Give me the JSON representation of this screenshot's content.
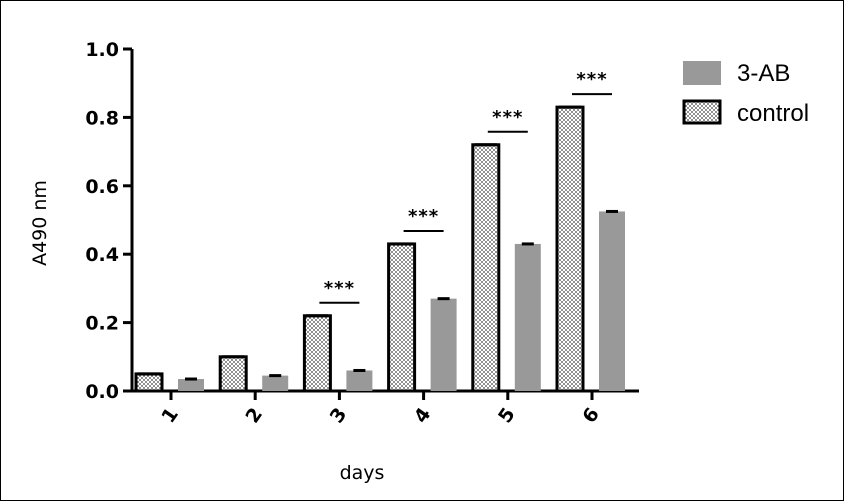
{
  "chart_data": {
    "type": "bar",
    "title": "",
    "xlabel": "days",
    "ylabel": "A490 nm",
    "ylim": [
      0,
      1.0
    ],
    "yticks": [
      "0.0",
      "0.2",
      "0.4",
      "0.6",
      "0.8",
      "1.0"
    ],
    "categories": [
      "1",
      "2",
      "3",
      "4",
      "5",
      "6"
    ],
    "series": [
      {
        "name": "control",
        "values": [
          0.05,
          0.1,
          0.22,
          0.43,
          0.72,
          0.83
        ],
        "errors": [
          0.003,
          0.003,
          0.004,
          0.003,
          0.003,
          0.003
        ],
        "fill": "dotted",
        "color": "#000000"
      },
      {
        "name": "3-AB",
        "values": [
          0.035,
          0.045,
          0.06,
          0.27,
          0.43,
          0.525
        ],
        "errors": [
          0.003,
          0.003,
          0.003,
          0.004,
          0.004,
          0.004
        ],
        "fill": "solid",
        "color": "#999999"
      }
    ],
    "significance": [
      {
        "category": "3",
        "label": "***"
      },
      {
        "category": "4",
        "label": "***"
      },
      {
        "category": "5",
        "label": "***"
      },
      {
        "category": "6",
        "label": "***"
      }
    ],
    "legend": {
      "placement": "top-right",
      "entries": [
        "3-AB",
        "control"
      ]
    },
    "grid": false
  }
}
